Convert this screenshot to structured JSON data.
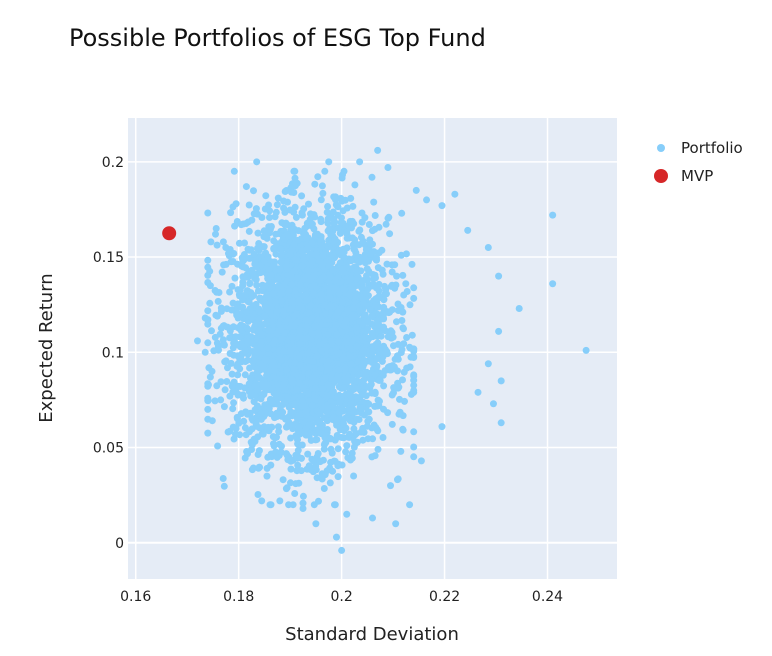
{
  "chart_data": {
    "type": "scatter",
    "title": "Possible Portfolios of ESG Top Fund",
    "xlabel": "Standard Deviation",
    "ylabel": "Expected Return",
    "xlim": [
      0.1585,
      0.2535
    ],
    "ylim": [
      -0.019,
      0.223
    ],
    "x_ticks": [
      0.16,
      0.18,
      0.2,
      0.22,
      0.24
    ],
    "x_tick_labels": [
      "0.16",
      "0.18",
      "0.2",
      "0.22",
      "0.24"
    ],
    "y_ticks": [
      0,
      0.05,
      0.1,
      0.15,
      0.2
    ],
    "y_tick_labels": [
      "0",
      "0.05",
      "0.1",
      "0.15",
      "0.2"
    ],
    "grid": true,
    "legend_position": "top-right",
    "series": [
      {
        "name": "Portfolio",
        "color": "#87cefa",
        "cloud_center": [
          0.194,
          0.11
        ],
        "cloud_spread": [
          0.0075,
          0.03
        ],
        "cloud_count": 4000,
        "points": [
          [
            0.1835,
            0.2
          ],
          [
            0.1975,
            0.2
          ],
          [
            0.2035,
            0.2
          ],
          [
            0.207,
            0.206
          ],
          [
            0.209,
            0.197
          ],
          [
            0.2145,
            0.185
          ],
          [
            0.2165,
            0.18
          ],
          [
            0.2195,
            0.177
          ],
          [
            0.222,
            0.183
          ],
          [
            0.2245,
            0.164
          ],
          [
            0.2285,
            0.155
          ],
          [
            0.241,
            0.172
          ],
          [
            0.241,
            0.136
          ],
          [
            0.2345,
            0.123
          ],
          [
            0.2305,
            0.14
          ],
          [
            0.2305,
            0.111
          ],
          [
            0.2475,
            0.101
          ],
          [
            0.2285,
            0.094
          ],
          [
            0.231,
            0.085
          ],
          [
            0.2295,
            0.073
          ],
          [
            0.231,
            0.063
          ],
          [
            0.2265,
            0.079
          ],
          [
            0.2195,
            0.061
          ],
          [
            0.2155,
            0.043
          ],
          [
            0.2115,
            0.048
          ],
          [
            0.2095,
            0.03
          ],
          [
            0.2105,
            0.01
          ],
          [
            0.206,
            0.013
          ],
          [
            0.201,
            0.015
          ],
          [
            0.199,
            0.003
          ],
          [
            0.2,
            -0.004
          ],
          [
            0.195,
            0.01
          ],
          [
            0.1925,
            0.018
          ],
          [
            0.188,
            0.022
          ],
          [
            0.1855,
            0.035
          ],
          [
            0.1825,
            0.049
          ],
          [
            0.1795,
            0.06
          ],
          [
            0.1765,
            0.075
          ],
          [
            0.1745,
            0.087
          ],
          [
            0.1735,
            0.1
          ],
          [
            0.172,
            0.106
          ],
          [
            0.1735,
            0.118
          ],
          [
            0.1745,
            0.135
          ],
          [
            0.1755,
            0.162
          ],
          [
            0.1795,
            0.178
          ],
          [
            0.1815,
            0.187
          ],
          [
            0.1805,
            0.167
          ],
          [
            0.1775,
            0.155
          ]
        ]
      },
      {
        "name": "MVP",
        "color": "#d62728",
        "points": [
          [
            0.1665,
            0.1625
          ]
        ]
      }
    ]
  }
}
